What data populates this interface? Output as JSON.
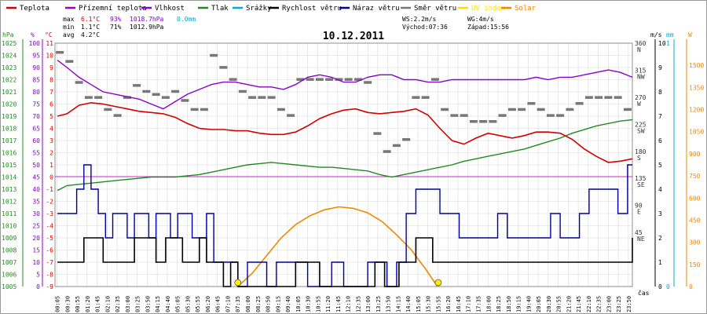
{
  "chart_data": {
    "type": "line",
    "title": "10.12.2011",
    "legend": [
      {
        "key": "temperature",
        "label": "Teplota",
        "color": "#d40000"
      },
      {
        "key": "apparent",
        "label": "Přízemní teplota",
        "color": "#9900cc"
      },
      {
        "key": "humidity",
        "label": "Vlhkost",
        "color": "#8800cc"
      },
      {
        "key": "pressure",
        "label": "Tlak",
        "color": "#228822"
      },
      {
        "key": "rain",
        "label": "Srážky",
        "color": "#00aacc"
      },
      {
        "key": "wind_speed",
        "label": "Rychlost větru",
        "color": "#000000"
      },
      {
        "key": "gust",
        "label": "Náraz větru",
        "color": "#000099"
      },
      {
        "key": "wind_dir",
        "label": "Směr větru",
        "color": "#777777"
      },
      {
        "key": "uv",
        "label": "UV index",
        "color": "#ffdd00"
      },
      {
        "key": "solar",
        "label": "Solar",
        "color": "#ee8800"
      }
    ],
    "stats": {
      "max_label": "max",
      "max_temp": "6.1°C",
      "max_hum": "93%",
      "max_press": "1018.7hPa",
      "max_rain": "0.0mm",
      "min_label": "min",
      "min_temp": "1.1°C",
      "min_hum": "71%",
      "min_press": "1012.9hPa",
      "avg_label": "avg",
      "avg_temp": "4.2°C",
      "ws": "WS:2.2m/s",
      "wg": "WG:4m/s",
      "sunrise": "Východ:07:36",
      "sunset": "Západ:15:56"
    },
    "axis_units": {
      "hpa": "hPa",
      "pct": "%",
      "degc": "°C",
      "ms": "m/s",
      "mm": "mm",
      "w": "W",
      "time": "čas"
    },
    "pressure_ticks": [
      "1025",
      "1024",
      "1023",
      "1022",
      "1021",
      "1020",
      "1019",
      "1018",
      "1017",
      "1016",
      "1015",
      "1014",
      "1013",
      "1012",
      "1011",
      "1010",
      "1009",
      "1008",
      "1007",
      "1006",
      "1005"
    ],
    "pressure_range": [
      1005,
      1025
    ],
    "humidity_ticks": [
      "100",
      "95",
      "90",
      "85",
      "80",
      "75",
      "70",
      "65",
      "60",
      "55",
      "50",
      "45",
      "40",
      "35",
      "30",
      "25",
      "20",
      "15",
      "10",
      "5",
      "0"
    ],
    "temp_ticks": [
      "11",
      "10",
      "9",
      "8",
      "7",
      "6",
      "5",
      "4",
      "3",
      "2",
      "1",
      "0",
      "-1",
      "-2",
      "-3",
      "-4",
      "-5",
      "-6",
      "-7",
      "-8",
      "-9"
    ],
    "temp_range": [
      -9,
      11
    ],
    "wind_ticks": [
      "10",
      "9",
      "8",
      "7",
      "6",
      "5",
      "4",
      "3",
      "2",
      "1",
      "0"
    ],
    "wind_range": [
      0,
      10
    ],
    "rain_ticks": [
      "1",
      "0"
    ],
    "solar_ticks": [
      "1500",
      "1350",
      "1200",
      "1050",
      "900",
      "750",
      "600",
      "450",
      "300",
      "150",
      "0"
    ],
    "solar_range": [
      0,
      1650
    ],
    "direction_labels": [
      {
        "deg": "360",
        "name": "N"
      },
      {
        "deg": "315",
        "name": "NW"
      },
      {
        "deg": "270",
        "name": "W"
      },
      {
        "deg": "225",
        "name": "SW"
      },
      {
        "deg": "180",
        "name": "S"
      },
      {
        "deg": "135",
        "name": "SE"
      },
      {
        "deg": "90",
        "name": "E"
      },
      {
        "deg": "45",
        "name": "NE"
      }
    ],
    "time_ticks": [
      "00:05",
      "00:30",
      "00:55",
      "01:20",
      "01:45",
      "02:10",
      "02:35",
      "03:00",
      "03:25",
      "03:50",
      "04:15",
      "04:40",
      "05:05",
      "05:30",
      "05:55",
      "06:20",
      "06:45",
      "07:10",
      "07:35",
      "08:00",
      "08:25",
      "08:50",
      "09:15",
      "09:40",
      "10:05",
      "10:30",
      "10:55",
      "11:20",
      "11:45",
      "12:10",
      "12:35",
      "13:00",
      "13:25",
      "13:50",
      "14:15",
      "14:40",
      "15:05",
      "15:30",
      "15:55",
      "16:20",
      "16:45",
      "17:10",
      "17:35",
      "18:00",
      "18:25",
      "18:50",
      "19:15",
      "19:40",
      "20:05",
      "20:30",
      "20:55",
      "21:20",
      "21:45",
      "22:10",
      "22:35",
      "23:00",
      "23:25",
      "23:50"
    ],
    "x_hours": [
      0,
      24
    ],
    "series": [
      {
        "name": "Teplota",
        "unit": "°C",
        "color": "#d40000",
        "x": [
          0.1,
          0.5,
          1,
          1.5,
          2,
          2.5,
          3,
          3.5,
          4,
          4.5,
          5,
          5.5,
          6,
          6.5,
          7,
          7.5,
          8,
          8.5,
          9,
          9.5,
          10,
          10.5,
          11,
          11.5,
          12,
          12.5,
          13,
          13.5,
          14,
          14.5,
          15,
          15.5,
          16,
          16.5,
          17,
          17.5,
          18,
          18.5,
          19,
          19.5,
          20,
          20.5,
          21,
          21.5,
          22,
          22.5,
          23,
          23.5,
          24
        ],
        "values": [
          5.0,
          5.2,
          5.9,
          6.1,
          6.0,
          5.8,
          5.6,
          5.4,
          5.3,
          5.2,
          4.9,
          4.4,
          4.0,
          3.9,
          3.9,
          3.8,
          3.8,
          3.6,
          3.5,
          3.5,
          3.7,
          4.2,
          4.8,
          5.2,
          5.5,
          5.6,
          5.3,
          5.2,
          5.3,
          5.4,
          5.6,
          5.1,
          4.0,
          3.0,
          2.7,
          3.2,
          3.6,
          3.4,
          3.2,
          3.4,
          3.7,
          3.7,
          3.6,
          3.1,
          2.3,
          1.7,
          1.2,
          1.3,
          1.5
        ]
      },
      {
        "name": "Vlhkost",
        "unit": "%",
        "color": "#8800cc",
        "x": [
          0.1,
          0.5,
          1,
          1.5,
          2,
          2.5,
          3,
          3.5,
          4,
          4.5,
          5,
          5.5,
          6,
          6.5,
          7,
          7.5,
          8,
          8.5,
          9,
          9.5,
          10,
          10.5,
          11,
          11.5,
          12,
          12.5,
          13,
          13.5,
          14,
          14.5,
          15,
          15.5,
          16,
          16.5,
          17,
          17.5,
          18,
          18.5,
          19,
          19.5,
          20,
          20.5,
          21,
          21.5,
          22,
          22.5,
          23,
          23.5,
          24
        ],
        "values": [
          93,
          90,
          86,
          83,
          80,
          79,
          78,
          77,
          75,
          73,
          76,
          79,
          81,
          83,
          84,
          84,
          83,
          82,
          82,
          81,
          83,
          86,
          87,
          86,
          84,
          84,
          86,
          87,
          87,
          85,
          85,
          84,
          84,
          85,
          85,
          85,
          85,
          85,
          85,
          85,
          86,
          85,
          86,
          86,
          87,
          88,
          89,
          88,
          86
        ]
      },
      {
        "name": "Tlak",
        "unit": "hPa",
        "color": "#228822",
        "x": [
          0.1,
          0.5,
          1,
          1.5,
          2,
          2.5,
          3,
          3.5,
          4,
          4.5,
          5,
          5.5,
          6,
          6.5,
          7,
          7.5,
          8,
          8.5,
          9,
          9.5,
          10,
          10.5,
          11,
          11.5,
          12,
          12.5,
          13,
          13.5,
          14,
          14.5,
          15,
          15.5,
          16,
          16.5,
          17,
          17.5,
          18,
          18.5,
          19,
          19.5,
          20,
          20.5,
          21,
          21.5,
          22,
          22.5,
          23,
          23.5,
          24
        ],
        "values": [
          1012.9,
          1013.3,
          1013.4,
          1013.5,
          1013.6,
          1013.7,
          1013.8,
          1013.9,
          1014.0,
          1014.0,
          1014.0,
          1014.1,
          1014.2,
          1014.4,
          1014.6,
          1014.8,
          1015.0,
          1015.1,
          1015.2,
          1015.1,
          1015.0,
          1014.9,
          1014.8,
          1014.8,
          1014.7,
          1014.6,
          1014.5,
          1014.2,
          1014.0,
          1014.2,
          1014.4,
          1014.6,
          1014.8,
          1015.0,
          1015.3,
          1015.5,
          1015.7,
          1015.9,
          1016.1,
          1016.3,
          1016.6,
          1016.9,
          1017.2,
          1017.6,
          1017.9,
          1018.2,
          1018.4,
          1018.6,
          1018.7
        ]
      },
      {
        "name": "Rychlost větru",
        "unit": "m/s",
        "color": "#000000",
        "x": [
          0.1,
          0.7,
          1.2,
          1.7,
          2,
          2.4,
          2.8,
          3.3,
          3.8,
          4.2,
          4.6,
          5,
          5.3,
          5.7,
          6,
          6.3,
          6.7,
          7,
          7.3,
          7.6,
          8,
          8.4,
          8.8,
          9.3,
          9.7,
          10,
          10.5,
          11,
          11.5,
          12,
          12.5,
          13,
          13.3,
          13.7,
          14,
          14.3,
          14.6,
          15,
          15.3,
          15.7,
          16,
          16.4,
          16.8,
          17.2,
          17.6,
          18,
          18.4,
          18.8,
          19.2,
          19.6,
          20,
          20.3,
          20.6,
          21,
          21.4,
          21.8,
          22.2,
          22.6,
          23,
          23.4,
          23.8,
          24
        ],
        "values": [
          1,
          1,
          2,
          2,
          1,
          1,
          1,
          2,
          2,
          1,
          2,
          2,
          1,
          1,
          2,
          1,
          1,
          0,
          1,
          0,
          0,
          0,
          0,
          0,
          0,
          1,
          1,
          0,
          0,
          0,
          0,
          0,
          1,
          0,
          0,
          1,
          1,
          2,
          2,
          1,
          1,
          1,
          1,
          1,
          1,
          1,
          1,
          1,
          1,
          1,
          1,
          1,
          1,
          1,
          1,
          1,
          1,
          1,
          1,
          1,
          1,
          2
        ]
      },
      {
        "name": "Náraz větru",
        "unit": "m/s",
        "color": "#000099",
        "x": [
          0.1,
          0.5,
          0.9,
          1.2,
          1.5,
          1.8,
          2.1,
          2.4,
          2.7,
          3,
          3.3,
          3.6,
          3.9,
          4.2,
          4.5,
          4.8,
          5.1,
          5.4,
          5.7,
          6,
          6.3,
          6.6,
          7,
          7.3,
          7.6,
          8,
          8.4,
          8.8,
          9.2,
          9.6,
          10,
          10.5,
          11,
          11.5,
          12,
          12.5,
          13,
          13.4,
          13.8,
          14.2,
          14.6,
          15,
          15.3,
          15.7,
          16,
          16.4,
          16.8,
          17.2,
          17.6,
          18,
          18.4,
          18.8,
          19.2,
          19.6,
          20,
          20.3,
          20.6,
          21,
          21.4,
          21.8,
          22.2,
          22.6,
          23,
          23.4,
          23.8,
          24
        ],
        "values": [
          3,
          3,
          4,
          5,
          4,
          3,
          2,
          3,
          3,
          2,
          3,
          3,
          2,
          3,
          3,
          2,
          3,
          3,
          2,
          2,
          3,
          1,
          1,
          1,
          0,
          1,
          1,
          0,
          1,
          1,
          1,
          0,
          0,
          1,
          0,
          0,
          1,
          1,
          0,
          1,
          3,
          4,
          4,
          4,
          3,
          3,
          2,
          2,
          2,
          2,
          3,
          2,
          2,
          2,
          2,
          2,
          3,
          2,
          2,
          3,
          4,
          4,
          4,
          3,
          5,
          5
        ]
      },
      {
        "name": "Solar",
        "unit": "W",
        "color": "#ee8800",
        "x": [
          7.6,
          8.2,
          8.8,
          9.4,
          10,
          10.6,
          11.2,
          11.8,
          12.4,
          13,
          13.6,
          14.2,
          14.8,
          15.4,
          15.9
        ],
        "values": [
          0,
          90,
          210,
          330,
          420,
          480,
          520,
          540,
          530,
          500,
          440,
          350,
          250,
          120,
          0
        ]
      }
    ],
    "wind_direction_deg": {
      "x": [
        0.2,
        0.6,
        1,
        1.4,
        1.8,
        2.2,
        2.6,
        3,
        3.4,
        3.8,
        4.2,
        4.6,
        5,
        5.4,
        5.8,
        6.2,
        6.6,
        7,
        7.4,
        7.8,
        8.2,
        8.6,
        9,
        9.4,
        9.8,
        10.2,
        10.6,
        11,
        11.4,
        11.8,
        12.2,
        12.6,
        13,
        13.4,
        13.8,
        14.2,
        14.6,
        15,
        15.4,
        15.8,
        16.2,
        16.6,
        17,
        17.4,
        17.8,
        18.2,
        18.6,
        19,
        19.4,
        19.8,
        20.2,
        20.6,
        21,
        21.4,
        21.8,
        22.2,
        22.6,
        23,
        23.4,
        23.8
      ],
      "values": [
        345,
        330,
        295,
        270,
        270,
        250,
        240,
        270,
        290,
        280,
        275,
        270,
        280,
        265,
        250,
        250,
        340,
        320,
        300,
        280,
        270,
        270,
        270,
        250,
        240,
        300,
        300,
        300,
        300,
        300,
        300,
        300,
        295,
        210,
        180,
        190,
        200,
        270,
        270,
        300,
        250,
        240,
        240,
        230,
        230,
        230,
        240,
        250,
        250,
        260,
        250,
        240,
        240,
        250,
        260,
        270,
        270,
        270,
        270,
        250
      ]
    },
    "markers": [
      {
        "label": "sunrise",
        "x": 7.6
      },
      {
        "label": "sunset",
        "x": 15.93
      }
    ]
  }
}
